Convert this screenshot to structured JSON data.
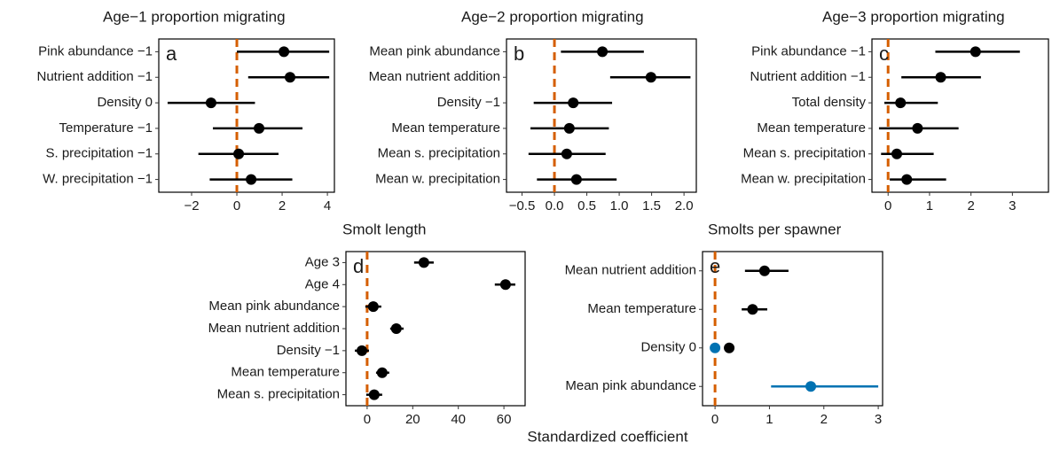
{
  "x_label": "Standardized coefficient",
  "chart_data": [
    {
      "type": "forest",
      "title": "Age−1 proportion migrating",
      "label": "a",
      "categories": [
        "Pink abundance −1",
        "Nutrient addition −1",
        "Density 0",
        "Temperature −1",
        "S. precipitation −1",
        "W. precipitation −1"
      ],
      "series": [
        {
          "color": "#000000",
          "values": [
            2.08,
            2.35,
            -1.14,
            0.98,
            0.08,
            0.63
          ],
          "lower": [
            0.0,
            0.5,
            -3.06,
            -1.06,
            -1.7,
            -1.2
          ],
          "upper": [
            4.08,
            4.08,
            0.8,
            2.9,
            1.84,
            2.45
          ]
        }
      ],
      "xlim": [
        -3.45,
        4.31
      ],
      "xticks": [
        {
          "value": -2,
          "label": "−2"
        },
        0,
        2,
        4
      ],
      "refline": 0,
      "refline_color": "#d55e00"
    },
    {
      "type": "forest",
      "title": "Age−2 proportion migrating",
      "label": "b",
      "categories": [
        "Mean pink abundance",
        "Mean nutrient addition",
        "Density −1",
        "Mean temperature",
        "Mean s. precipitation",
        "Mean w. precipitation"
      ],
      "series": [
        {
          "color": "#000000",
          "values": [
            0.74,
            1.49,
            0.29,
            0.23,
            0.19,
            0.34
          ],
          "lower": [
            0.1,
            0.86,
            -0.32,
            -0.37,
            -0.4,
            -0.27
          ],
          "upper": [
            1.38,
            2.1,
            0.89,
            0.84,
            0.79,
            0.96
          ]
        }
      ],
      "xlim": [
        -0.74,
        2.19
      ],
      "xticks": [
        {
          "value": -0.5,
          "label": "−0.5"
        },
        {
          "value": 0,
          "label": "0.0"
        },
        0.5,
        {
          "value": 1,
          "label": "1.0"
        },
        1.5,
        {
          "value": 2,
          "label": "2.0"
        }
      ],
      "refline": 0,
      "refline_color": "#d55e00"
    },
    {
      "type": "forest",
      "title": "Age−3 proportion migrating",
      "label": "c",
      "categories": [
        "Pink abundance −1",
        "Nutrient addition −1",
        "Total density",
        "Mean temperature",
        "Mean s. precipitation",
        "Mean w. precipitation"
      ],
      "series": [
        {
          "color": "#000000",
          "values": [
            2.11,
            1.27,
            0.3,
            0.71,
            0.21,
            0.45
          ],
          "lower": [
            1.14,
            0.32,
            -0.09,
            -0.22,
            -0.17,
            0.04
          ],
          "upper": [
            3.18,
            2.24,
            1.2,
            1.7,
            1.1,
            1.4
          ]
        }
      ],
      "xlim": [
        -0.39,
        3.87
      ],
      "xticks": [
        0,
        1,
        2,
        3
      ],
      "refline": 0,
      "refline_color": "#d55e00"
    },
    {
      "type": "forest",
      "title": "Smolt length",
      "label": "d",
      "categories": [
        "Age 3",
        "Age 4",
        "Mean pink abundance",
        "Mean nutrient addition",
        "Density −1",
        "Mean temperature",
        "Mean s. precipitation"
      ],
      "series": [
        {
          "color": "#000000",
          "values": [
            24.9,
            60.7,
            2.7,
            12.8,
            -2.3,
            6.6,
            3.1
          ],
          "lower": [
            20.6,
            56,
            -0.8,
            10.1,
            -5.4,
            3.9,
            -0.4
          ],
          "upper": [
            29.2,
            65,
            6.2,
            16,
            0.8,
            9.7,
            6.6
          ]
        }
      ],
      "xlim": [
        -9.3,
        69.3
      ],
      "xticks": [
        0,
        20,
        40,
        60
      ],
      "refline": 0,
      "refline_color": "#d55e00"
    },
    {
      "type": "forest",
      "title": "Smolts per spawner",
      "label": "e",
      "categories": [
        "Mean nutrient addition",
        "Mean temperature",
        "Density 0",
        "Mean pink abundance"
      ],
      "series": [
        {
          "color": "#000000",
          "values": [
            0.91,
            0.69,
            0.26,
            null
          ],
          "lower": [
            0.55,
            0.49,
            null,
            null
          ],
          "upper": [
            1.35,
            0.96,
            null,
            null
          ]
        },
        {
          "color": "#0072b2",
          "values": [
            null,
            null,
            0,
            1.76
          ],
          "lower": [
            null,
            null,
            null,
            1.03
          ],
          "upper": [
            null,
            null,
            null,
            3.0
          ]
        }
      ],
      "xlim": [
        -0.23,
        3.08
      ],
      "xticks": [
        0,
        1,
        2,
        3
      ],
      "refline": 0,
      "refline_color": "#d55e00"
    }
  ]
}
